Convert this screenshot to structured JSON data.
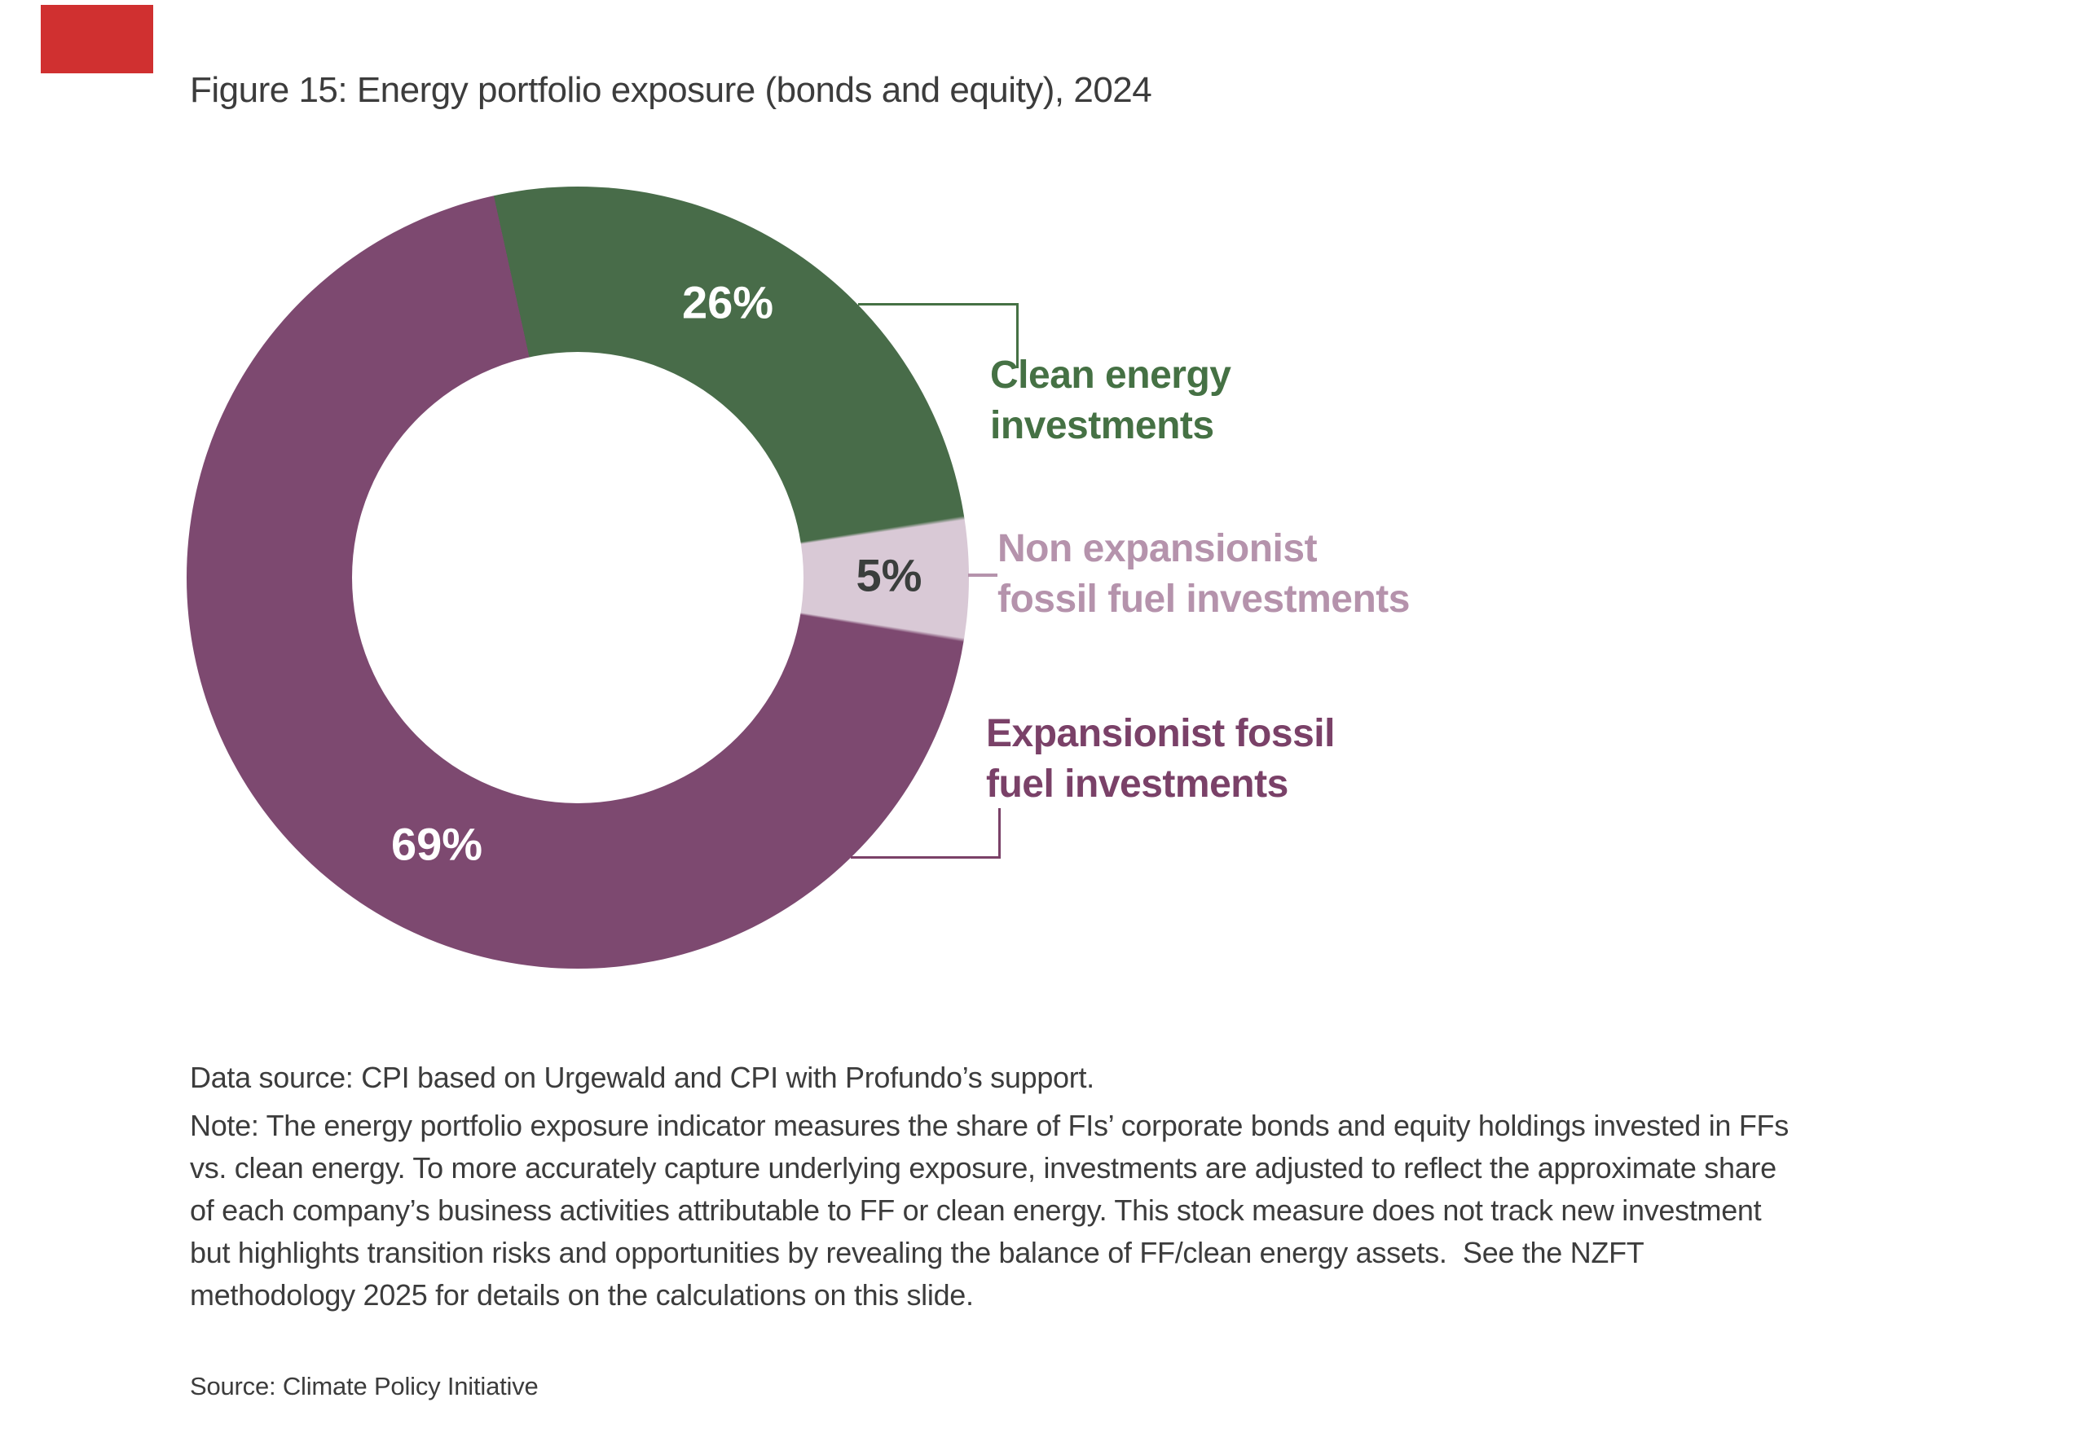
{
  "decor": {
    "red_mark_color": "#d03030",
    "text_color": "#3c3c3c"
  },
  "title": "Figure 15: Energy portfolio exposure (bonds and equity), 2024",
  "chart_data": {
    "type": "pie",
    "subtype": "donut",
    "title": "Figure 15: Energy portfolio exposure (bonds and equity), 2024",
    "unit": "%",
    "start_angle_deg_from_12oclock": -12.4,
    "direction": "clockwise",
    "inner_radius_ratio": 0.58,
    "legend_position": "right",
    "segments": [
      {
        "label": "Clean energy investments",
        "value_pct": 26,
        "data_label": "26%",
        "color": "#486c49",
        "label_color": "#457144"
      },
      {
        "label": "Non expansionist fossil fuel investments",
        "value_pct": 5,
        "data_label": "5%",
        "color": "#d9c9d6",
        "label_color": "#b593ac"
      },
      {
        "label": "Expansionist fossil fuel investments",
        "value_pct": 69,
        "data_label": "69%",
        "color": "#7d4970",
        "label_color": "#7a4168"
      }
    ]
  },
  "labels": {
    "pct_clean": "26%",
    "pct_nonexp": "5%",
    "pct_exp": "69%",
    "legend_clean": "Clean energy\ninvestments",
    "legend_nonexp": "Non expansionist\nfossil fuel investments",
    "legend_exp": "Expansionist fossil\nfuel investments"
  },
  "footer": {
    "data_source": "Data source: CPI based on Urgewald and CPI with Profundo’s support.",
    "note_lines": [
      "Note: The energy portfolio exposure indicator measures the share of FIs’ corporate bonds and equity holdings invested in FFs",
      "vs. clean energy. To more accurately capture underlying exposure, investments are adjusted to reflect the approximate share",
      "of each company’s business activities attributable to FF or clean energy. This stock measure does not track new investment",
      "but highlights transition risks and opportunities by revealing the balance of FF/clean energy assets.  See the NZFT",
      "methodology 2025 for details on the calculations on this slide."
    ],
    "source": "Source: Climate Policy Initiative"
  }
}
